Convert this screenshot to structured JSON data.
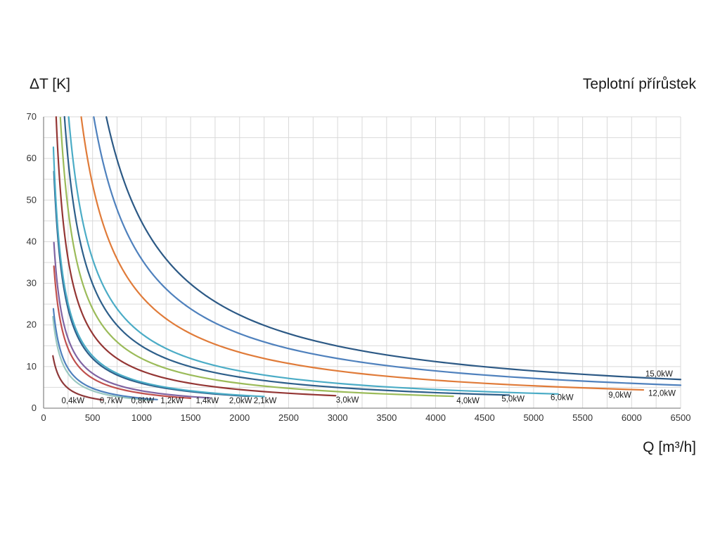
{
  "titles": {
    "y_axis_title": "ΔT [K]",
    "chart_title": "Teplotní přírůstek",
    "x_axis_title": "Q [m³/h]"
  },
  "style": {
    "grid_color": "#d9d9d9",
    "axis_color": "#8c8c8c",
    "tick_text_color": "#333333",
    "series_label_color": "#1a1a1a"
  },
  "chart_data": {
    "type": "line",
    "title": "Teplotní přírůstek",
    "xlabel": "Q [m³/h]",
    "ylabel": "ΔT [K]",
    "xlim": [
      0,
      6500
    ],
    "ylim": [
      0,
      70
    ],
    "x_major_tick": 500,
    "x_minor_grid": 250,
    "y_major_tick": 10,
    "y_minor_grid": 5,
    "grid": true,
    "legend_position": "inline-labels",
    "formula": "deltaT = k * P_kW / Q_m3h",
    "k": 2985,
    "series": [
      {
        "label": "0,4kW",
        "power_kw": 0.4,
        "color": "#8e3839",
        "q_min": 95,
        "q_max": 600,
        "label_q": 300,
        "label_dt": 1.9
      },
      {
        "label": "0,7kW",
        "power_kw": 0.7,
        "color": "#9bc8c0",
        "q_min": 95,
        "q_max": 1100,
        "label_q": 690,
        "label_dt": 1.9
      },
      {
        "label": "0,8kW",
        "power_kw": 0.8,
        "color": "#4f81bd",
        "q_min": 100,
        "q_max": 1160,
        "label_q": 1010,
        "label_dt": 1.9
      },
      {
        "label": "1,2kW",
        "power_kw": 1.2,
        "color": "#c0504d",
        "q_min": 105,
        "q_max": 1500,
        "label_q": 1310,
        "label_dt": 1.9
      },
      {
        "label": "1,4kW",
        "power_kw": 1.4,
        "color": "#8064a2",
        "q_min": 105,
        "q_max": 1700,
        "label_q": 1670,
        "label_dt": 1.9
      },
      {
        "label": "2,0kW",
        "power_kw": 2.0,
        "color": "#2e5f8a",
        "q_min": 105,
        "q_max": 2100,
        "label_q": 2010,
        "label_dt": 1.9
      },
      {
        "label": "2,1kW",
        "power_kw": 2.1,
        "color": "#4bacc6",
        "q_min": 100,
        "q_max": 2250,
        "label_q": 2260,
        "label_dt": 1.9
      },
      {
        "label": "3,0kW",
        "power_kw": 3.0,
        "color": "#943634",
        "q_min": 128,
        "q_max": 2980,
        "label_q": 3100,
        "label_dt": 2.0
      },
      {
        "label": "4,0kW",
        "power_kw": 4.0,
        "color": "#9bbb59",
        "q_min": 171,
        "q_max": 4180,
        "label_q": 4330,
        "label_dt": 1.9
      },
      {
        "label": "5,0kW",
        "power_kw": 5.0,
        "color": "#2e5f8a",
        "q_min": 213,
        "q_max": 4750,
        "label_q": 4790,
        "label_dt": 2.3
      },
      {
        "label": "6,0kW",
        "power_kw": 6.0,
        "color": "#4bacc6",
        "q_min": 256,
        "q_max": 5250,
        "label_q": 5290,
        "label_dt": 2.6
      },
      {
        "label": "9,0kW",
        "power_kw": 9.0,
        "color": "#e07b39",
        "q_min": 384,
        "q_max": 6120,
        "label_q": 5880,
        "label_dt": 3.2
      },
      {
        "label": "12,0kW",
        "power_kw": 12.0,
        "color": "#4f81bd",
        "q_min": 512,
        "q_max": 6500,
        "label_q": 6310,
        "label_dt": 3.6
      },
      {
        "label": "15,0kW",
        "power_kw": 15.0,
        "color": "#2c5985",
        "q_min": 640,
        "q_max": 6500,
        "label_q": 6280,
        "label_dt": 8.3
      }
    ]
  }
}
